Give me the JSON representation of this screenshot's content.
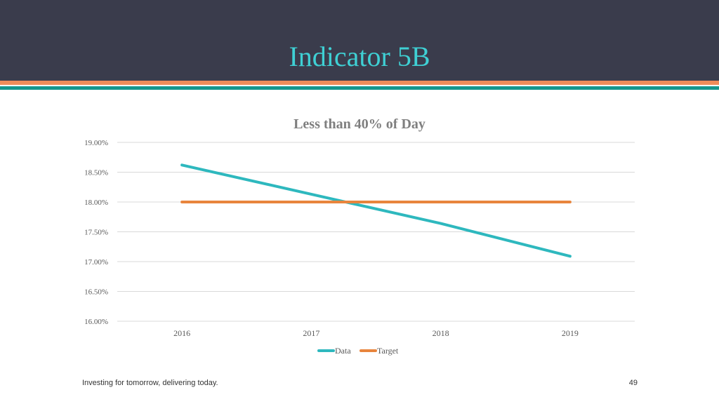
{
  "slide": {
    "title": "Indicator 5B",
    "footer": "Investing for tomorrow, delivering today.",
    "page_number": "49"
  },
  "colors": {
    "header_bg": "#3a3c4c",
    "title": "#3fd0d4",
    "stripe_orange": "#f08c5a",
    "stripe_teal": "#16968d",
    "data_series": "#2eb8be",
    "target_series": "#e8853d"
  },
  "chart_data": {
    "type": "line",
    "title": "Less than 40% of Day",
    "xlabel": "",
    "ylabel": "",
    "categories": [
      "2016",
      "2017",
      "2018",
      "2019"
    ],
    "series": [
      {
        "name": "Data",
        "values": [
          18.62,
          18.13,
          17.64,
          17.09
        ],
        "color": "#2eb8be"
      },
      {
        "name": "Target",
        "values": [
          18.0,
          18.0,
          18.0,
          18.0
        ],
        "color": "#e8853d"
      }
    ],
    "ylim": [
      16.0,
      19.0
    ],
    "yticks": [
      19.0,
      18.5,
      18.0,
      17.5,
      17.0,
      16.5,
      16.0
    ],
    "ytick_labels": [
      "19.00%",
      "18.50%",
      "18.00%",
      "17.50%",
      "17.00%",
      "16.50%",
      "16.00%"
    ],
    "grid": true,
    "legend": "bottom"
  }
}
